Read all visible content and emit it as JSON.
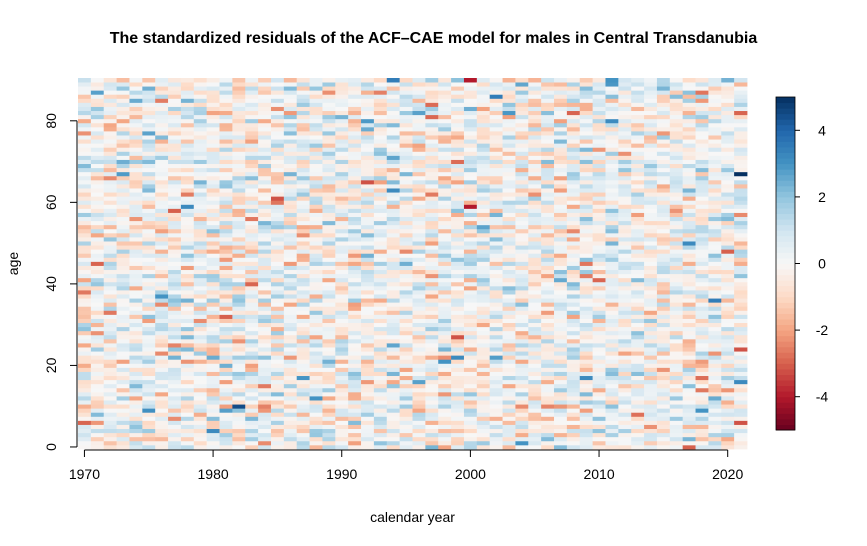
{
  "chart_data": {
    "type": "heatmap",
    "title": "The standardized residuals of the ACF–CAE model for males in Central Transdanubia",
    "xlabel": "calendar year",
    "ylabel": "age",
    "x": {
      "start": 1970,
      "end": 2021,
      "step": 1
    },
    "y": {
      "start": 0,
      "end": 90,
      "step": 1
    },
    "xlim": [
      1969.5,
      2021.5
    ],
    "ylim": [
      -0.5,
      90.5
    ],
    "xticks": [
      "1970",
      "1980",
      "1990",
      "2000",
      "2010",
      "2020"
    ],
    "yticks": [
      "0",
      "20",
      "40",
      "60",
      "80"
    ],
    "colorbar": {
      "range": [
        -5,
        5
      ],
      "ticks": [
        "4",
        "2",
        "0",
        "-2",
        "-4"
      ],
      "colors": [
        "#67001f",
        "#b2182b",
        "#d6604d",
        "#f4a582",
        "#fddbc7",
        "#f7f7f7",
        "#d1e5f0",
        "#92c5de",
        "#4393c3",
        "#2166ac",
        "#053061"
      ]
    },
    "notable_cells": [
      {
        "year": 2021,
        "age": 67,
        "value": 5.0
      },
      {
        "year": 1982,
        "age": 10,
        "value": 4.5
      },
      {
        "year": 2000,
        "age": 90,
        "value": -4.0
      },
      {
        "year": 2000,
        "age": 59,
        "value": -4.0
      },
      {
        "year": 2017,
        "age": 0,
        "value": -3.0
      },
      {
        "year": 1994,
        "age": 90,
        "value": 3.5
      },
      {
        "year": 2019,
        "age": 36,
        "value": 3.5
      },
      {
        "year": 2002,
        "age": 86,
        "value": 3.5
      },
      {
        "year": 2020,
        "age": 48,
        "value": -3.0
      },
      {
        "year": 2011,
        "age": 90,
        "value": 3.0
      },
      {
        "year": 2004,
        "age": 1,
        "value": 3.0
      },
      {
        "year": 1976,
        "age": 37,
        "value": 3.0
      },
      {
        "year": 1988,
        "age": 12,
        "value": 3.0
      },
      {
        "year": 1981,
        "age": 32,
        "value": -3.0
      },
      {
        "year": 1998,
        "age": 21,
        "value": 3.0
      },
      {
        "year": 2018,
        "age": 9,
        "value": 3.0
      },
      {
        "year": 1977,
        "age": 58,
        "value": -3.0
      }
    ],
    "residual_sd": 1.0,
    "legend": "right",
    "grid": false
  }
}
